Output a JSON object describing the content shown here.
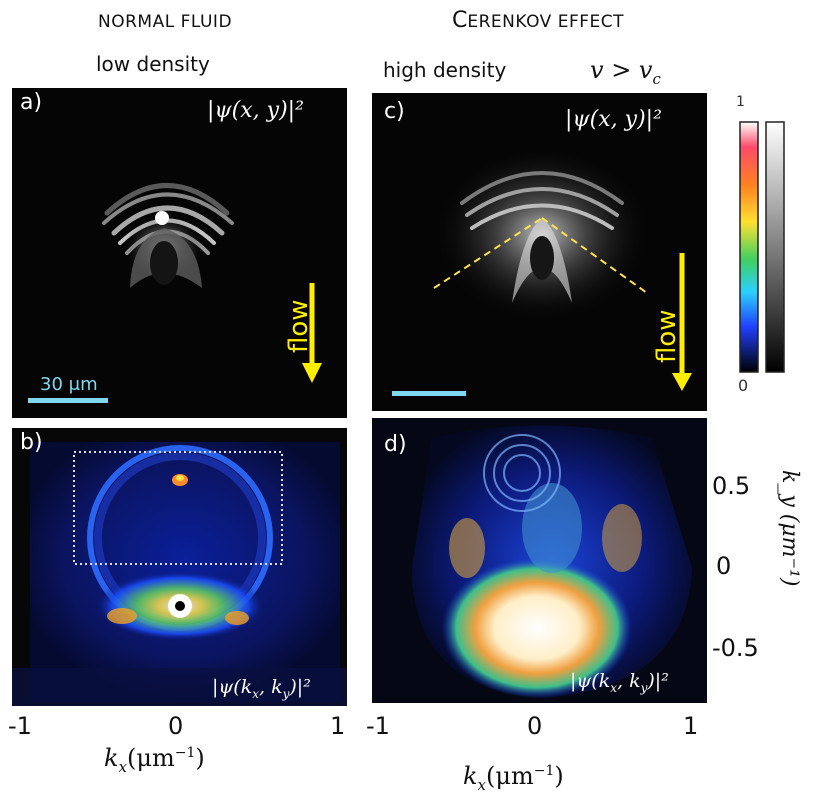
{
  "headers": {
    "normal_fluid": "NORMAL FLUID",
    "cerenkov_cap": "C",
    "cerenkov_rest": "ERENKOV EFFECT",
    "low_density": "low density",
    "high_density": "high density",
    "velocity_condition": "v > v",
    "velocity_sub": "c"
  },
  "panels": {
    "a": {
      "label": "a)",
      "equation": "|ψ(x, y)|²",
      "scale_bar": "30 μm",
      "flow": "flow"
    },
    "b": {
      "label": "b)",
      "equation": "|ψ(k",
      "eq_sub_x": "x",
      "eq_mid": ", k",
      "eq_sub_y": "y",
      "eq_end": ")|²"
    },
    "c": {
      "label": "c)",
      "equation": "|ψ(x, y)|²",
      "flow": "flow"
    },
    "d": {
      "label": "d)",
      "equation": "|ψ(k",
      "eq_sub_x": "x",
      "eq_mid": ", k",
      "eq_sub_y": "y",
      "eq_end": ")|²"
    }
  },
  "colorbar": {
    "max_label": "1",
    "min_label": "0"
  },
  "axes": {
    "x_ticks_left": [
      "-1",
      "0",
      "1"
    ],
    "x_ticks_right": [
      "-1",
      "0",
      "1"
    ],
    "x_title": "k",
    "x_title_sub": "x",
    "x_title_unit": "(μm",
    "x_title_exp": "−1",
    "x_title_close": ")",
    "y_ticks": [
      "0.5",
      "0",
      "-0.5"
    ],
    "y_title": "k_y (μm⁻¹)"
  },
  "colors": {
    "flow_arrow": "#ffee00",
    "scale_bar": "#7fd8f0",
    "cone_line": "#ffe34d",
    "panel_bg": "#050505"
  }
}
